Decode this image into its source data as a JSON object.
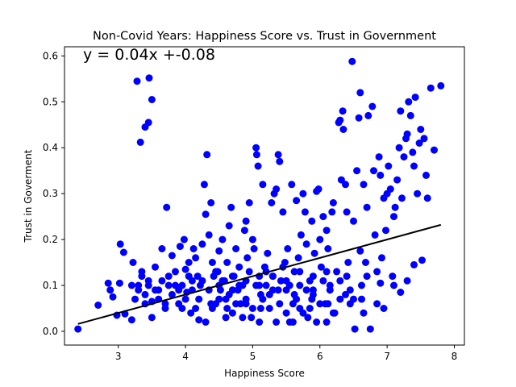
{
  "chart_data": {
    "type": "scatter",
    "title": "Non-Covid Years: Happiness Score vs. Trust in Government",
    "xlabel": "Happiness Score",
    "ylabel": "Trust in Goverment",
    "xlim": [
      2.2,
      8.15
    ],
    "ylim": [
      -0.03,
      0.62
    ],
    "xticks": [
      3,
      4,
      5,
      6,
      7,
      8
    ],
    "yticks": [
      0.0,
      0.1,
      0.2,
      0.3,
      0.4,
      0.5,
      0.6
    ],
    "grid": false,
    "point_color": "#0000ff",
    "line_color": "#000000",
    "annotation": "y = 0.04x +-0.08",
    "regression": {
      "slope": 0.04,
      "intercept": -0.08,
      "x": [
        2.4,
        7.8
      ]
    },
    "series": [
      {
        "points": [
          [
            2.4,
            0.005
          ],
          [
            2.7,
            0.057
          ],
          [
            2.85,
            0.105
          ],
          [
            2.88,
            0.09
          ],
          [
            2.92,
            0.075
          ],
          [
            2.98,
            0.035
          ],
          [
            3.02,
            0.105
          ],
          [
            3.03,
            0.19
          ],
          [
            3.08,
            0.172
          ],
          [
            3.1,
            0.038
          ],
          [
            3.2,
            0.025
          ],
          [
            3.22,
            0.15
          ],
          [
            3.28,
            0.545
          ],
          [
            3.33,
            0.412
          ],
          [
            3.4,
            0.445
          ],
          [
            3.45,
            0.455
          ],
          [
            3.46,
            0.552
          ],
          [
            3.5,
            0.505
          ],
          [
            3.3,
            0.1
          ],
          [
            3.35,
            0.12
          ],
          [
            3.4,
            0.08
          ],
          [
            3.45,
            0.1
          ],
          [
            3.5,
            0.065
          ],
          [
            3.55,
            0.14
          ],
          [
            3.6,
            0.09
          ],
          [
            3.65,
            0.18
          ],
          [
            3.7,
            0.06
          ],
          [
            3.72,
            0.27
          ],
          [
            3.75,
            0.12
          ],
          [
            3.8,
            0.165
          ],
          [
            3.85,
            0.1
          ],
          [
            3.9,
            0.09
          ],
          [
            3.92,
            0.185
          ],
          [
            3.95,
            0.05
          ],
          [
            3.98,
            0.2
          ],
          [
            4.0,
            0.135
          ],
          [
            4.02,
            0.085
          ],
          [
            4.05,
            0.15
          ],
          [
            4.08,
            0.04
          ],
          [
            4.1,
            0.11
          ],
          [
            4.12,
            0.18
          ],
          [
            4.15,
            0.16
          ],
          [
            4.18,
            0.12
          ],
          [
            4.2,
            0.025
          ],
          [
            4.22,
            0.1
          ],
          [
            4.25,
            0.19
          ],
          [
            4.28,
            0.32
          ],
          [
            4.3,
            0.255
          ],
          [
            4.32,
            0.385
          ],
          [
            4.35,
            0.21
          ],
          [
            4.38,
            0.28
          ],
          [
            4.4,
            0.15
          ],
          [
            4.42,
            0.12
          ],
          [
            4.45,
            0.06
          ],
          [
            4.48,
            0.13
          ],
          [
            4.5,
            0.175
          ],
          [
            4.52,
            0.09
          ],
          [
            4.55,
            0.2
          ],
          [
            4.58,
            0.11
          ],
          [
            4.6,
            0.07
          ],
          [
            4.62,
            0.15
          ],
          [
            4.65,
            0.23
          ],
          [
            4.68,
            0.27
          ],
          [
            4.7,
            0.04
          ],
          [
            4.72,
            0.12
          ],
          [
            4.75,
            0.18
          ],
          [
            4.78,
            0.09
          ],
          [
            4.8,
            0.14
          ],
          [
            4.82,
            0.06
          ],
          [
            4.85,
            0.1
          ],
          [
            4.88,
            0.22
          ],
          [
            4.9,
            0.24
          ],
          [
            4.92,
            0.16
          ],
          [
            4.95,
            0.28
          ],
          [
            4.98,
            0.03
          ],
          [
            5.0,
            0.2
          ],
          [
            5.02,
            0.18
          ],
          [
            5.05,
            0.4
          ],
          [
            5.06,
            0.385
          ],
          [
            5.08,
            0.36
          ],
          [
            5.1,
            0.12
          ],
          [
            5.12,
            0.05
          ],
          [
            5.15,
            0.32
          ],
          [
            5.18,
            0.14
          ],
          [
            5.2,
            0.1
          ],
          [
            5.22,
            0.17
          ],
          [
            5.25,
            0.08
          ],
          [
            5.28,
            0.28
          ],
          [
            5.3,
            0.12
          ],
          [
            5.32,
            0.3
          ],
          [
            5.35,
            0.31
          ],
          [
            5.38,
            0.385
          ],
          [
            5.4,
            0.37
          ],
          [
            5.42,
            0.11
          ],
          [
            5.45,
            0.26
          ],
          [
            5.48,
            0.15
          ],
          [
            5.5,
            0.09
          ],
          [
            5.52,
            0.18
          ],
          [
            5.55,
            0.02
          ],
          [
            5.58,
            0.32
          ],
          [
            5.6,
            0.06
          ],
          [
            5.62,
            0.13
          ],
          [
            5.65,
            0.285
          ],
          [
            5.68,
            0.16
          ],
          [
            5.7,
            0.05
          ],
          [
            5.72,
            0.21
          ],
          [
            5.75,
            0.3
          ],
          [
            5.78,
            0.26
          ],
          [
            5.8,
            0.19
          ],
          [
            5.82,
            0.03
          ],
          [
            5.85,
            0.11
          ],
          [
            5.88,
            0.24
          ],
          [
            5.9,
            0.08
          ],
          [
            5.92,
            0.17
          ],
          [
            5.95,
            0.305
          ],
          [
            5.98,
            0.31
          ],
          [
            6.0,
            0.2
          ],
          [
            6.02,
            0.14
          ],
          [
            6.05,
            0.25
          ],
          [
            6.08,
            0.06
          ],
          [
            6.1,
            0.22
          ],
          [
            6.12,
            0.18
          ],
          [
            6.15,
            0.1
          ],
          [
            6.18,
            0.26
          ],
          [
            6.2,
            0.28
          ],
          [
            6.22,
            0.04
          ],
          [
            6.25,
            0.13
          ],
          [
            6.28,
            0.455
          ],
          [
            6.3,
            0.46
          ],
          [
            6.32,
            0.33
          ],
          [
            6.34,
            0.48
          ],
          [
            6.35,
            0.44
          ],
          [
            6.38,
            0.32
          ],
          [
            6.4,
            0.26
          ],
          [
            6.42,
            0.15
          ],
          [
            6.45,
            0.09
          ],
          [
            6.48,
            0.588
          ],
          [
            6.5,
            0.24
          ],
          [
            6.52,
            0.005
          ],
          [
            6.55,
            0.35
          ],
          [
            6.58,
            0.465
          ],
          [
            6.6,
            0.52
          ],
          [
            6.62,
            0.1
          ],
          [
            6.65,
            0.32
          ],
          [
            6.68,
            0.15
          ],
          [
            6.7,
            0.27
          ],
          [
            6.72,
            0.47
          ],
          [
            6.75,
            0.005
          ],
          [
            6.78,
            0.49
          ],
          [
            6.8,
            0.35
          ],
          [
            6.82,
            0.21
          ],
          [
            6.85,
            0.13
          ],
          [
            6.88,
            0.38
          ],
          [
            6.9,
            0.34
          ],
          [
            6.92,
            0.16
          ],
          [
            6.95,
            0.29
          ],
          [
            6.98,
            0.22
          ],
          [
            7.0,
            0.3
          ],
          [
            7.02,
            0.36
          ],
          [
            7.05,
            0.31
          ],
          [
            7.08,
            0.12
          ],
          [
            7.1,
            0.25
          ],
          [
            7.12,
            0.27
          ],
          [
            7.15,
            0.33
          ],
          [
            7.18,
            0.4
          ],
          [
            7.2,
            0.48
          ],
          [
            7.22,
            0.29
          ],
          [
            7.25,
            0.38
          ],
          [
            7.28,
            0.42
          ],
          [
            7.3,
            0.43
          ],
          [
            7.32,
            0.5
          ],
          [
            7.35,
            0.47
          ],
          [
            7.38,
            0.39
          ],
          [
            7.4,
            0.36
          ],
          [
            7.42,
            0.51
          ],
          [
            7.45,
            0.3
          ],
          [
            7.48,
            0.41
          ],
          [
            7.5,
            0.44
          ],
          [
            7.52,
            0.155
          ],
          [
            7.55,
            0.42
          ],
          [
            7.58,
            0.34
          ],
          [
            7.6,
            0.29
          ],
          [
            7.65,
            0.53
          ],
          [
            7.7,
            0.395
          ],
          [
            7.8,
            0.535
          ],
          [
            7.4,
            0.145
          ],
          [
            7.3,
            0.11
          ],
          [
            7.2,
            0.085
          ],
          [
            7.1,
            0.1
          ],
          [
            6.95,
            0.05
          ],
          [
            6.9,
            0.105
          ],
          [
            6.85,
            0.06
          ],
          [
            6.7,
            0.12
          ],
          [
            6.65,
            0.04
          ],
          [
            6.6,
            0.175
          ],
          [
            6.5,
            0.07
          ],
          [
            6.45,
            0.06
          ],
          [
            6.4,
            0.12
          ],
          [
            6.3,
            0.07
          ],
          [
            6.2,
            0.04
          ],
          [
            6.15,
            0.09
          ],
          [
            6.1,
            0.02
          ],
          [
            6.05,
            0.11
          ],
          [
            6.0,
            0.06
          ],
          [
            5.95,
            0.02
          ],
          [
            5.9,
            0.12
          ],
          [
            5.85,
            0.05
          ],
          [
            5.8,
            0.09
          ],
          [
            5.75,
            0.04
          ],
          [
            5.7,
            0.13
          ],
          [
            5.65,
            0.07
          ],
          [
            5.6,
            0.02
          ],
          [
            5.55,
            0.1
          ],
          [
            5.5,
            0.04
          ],
          [
            5.45,
            0.14
          ],
          [
            5.4,
            0.06
          ],
          [
            5.35,
            0.02
          ],
          [
            5.3,
            0.09
          ],
          [
            5.25,
            0.05
          ],
          [
            5.2,
            0.13
          ],
          [
            5.15,
            0.07
          ],
          [
            5.1,
            0.02
          ],
          [
            5.05,
            0.1
          ],
          [
            5.0,
            0.05
          ],
          [
            4.95,
            0.13
          ],
          [
            4.9,
            0.07
          ],
          [
            4.85,
            0.03
          ],
          [
            4.8,
            0.1
          ],
          [
            4.75,
            0.06
          ],
          [
            4.7,
            0.12
          ],
          [
            4.65,
            0.08
          ],
          [
            4.6,
            0.03
          ],
          [
            4.55,
            0.11
          ],
          [
            4.5,
            0.07
          ],
          [
            4.45,
            0.13
          ],
          [
            4.4,
            0.05
          ],
          [
            4.35,
            0.09
          ],
          [
            4.3,
            0.02
          ],
          [
            4.25,
            0.11
          ],
          [
            4.2,
            0.07
          ],
          [
            4.15,
            0.05
          ],
          [
            4.1,
            0.09
          ],
          [
            4.05,
            0.12
          ],
          [
            4.0,
            0.07
          ],
          [
            3.95,
            0.1
          ],
          [
            3.9,
            0.06
          ],
          [
            3.85,
            0.13
          ],
          [
            3.8,
            0.08
          ],
          [
            3.75,
            0.1
          ],
          [
            3.7,
            0.05
          ],
          [
            3.65,
            0.11
          ],
          [
            3.6,
            0.07
          ],
          [
            3.55,
            0.09
          ],
          [
            3.5,
            0.03
          ],
          [
            3.45,
            0.11
          ],
          [
            3.4,
            0.06
          ],
          [
            3.35,
            0.13
          ],
          [
            3.3,
            0.09
          ],
          [
            3.25,
            0.07
          ],
          [
            3.2,
            0.1
          ],
          [
            4.38,
            0.06
          ],
          [
            4.62,
            0.05
          ],
          [
            4.9,
            0.06
          ],
          [
            5.12,
            0.08
          ],
          [
            5.38,
            0.09
          ],
          [
            5.62,
            0.08
          ],
          [
            5.88,
            0.07
          ],
          [
            6.12,
            0.06
          ],
          [
            6.38,
            0.08
          ],
          [
            6.62,
            0.07
          ],
          [
            4.5,
            0.1
          ],
          [
            4.7,
            0.09
          ],
          [
            4.9,
            0.11
          ],
          [
            5.1,
            0.1
          ],
          [
            5.3,
            0.12
          ],
          [
            5.5,
            0.11
          ],
          [
            5.7,
            0.1
          ],
          [
            5.9,
            0.09
          ],
          [
            6.1,
            0.13
          ],
          [
            6.3,
            0.11
          ]
        ]
      }
    ]
  }
}
